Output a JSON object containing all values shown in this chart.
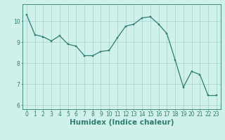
{
  "x": [
    0,
    1,
    2,
    3,
    4,
    5,
    6,
    7,
    8,
    9,
    10,
    11,
    12,
    13,
    14,
    15,
    16,
    17,
    18,
    19,
    20,
    21,
    22,
    23
  ],
  "y": [
    10.3,
    9.35,
    9.25,
    9.05,
    9.3,
    8.9,
    8.8,
    8.35,
    8.35,
    8.55,
    8.6,
    9.2,
    9.75,
    9.85,
    10.15,
    10.2,
    9.85,
    9.4,
    8.15,
    6.85,
    7.6,
    7.45,
    6.45,
    6.45
  ],
  "line_color": "#2e7d6e",
  "marker_color": "#2e7d6e",
  "bg_color": "#cff0eb",
  "grid_color": "#a0d4cc",
  "axis_color": "#2e7d6e",
  "xlabel": "Humidex (Indice chaleur)",
  "ylim": [
    5.8,
    10.8
  ],
  "xlim": [
    -0.5,
    23.5
  ],
  "yticks": [
    6,
    7,
    8,
    9,
    10
  ],
  "xticks": [
    0,
    1,
    2,
    3,
    4,
    5,
    6,
    7,
    8,
    9,
    10,
    11,
    12,
    13,
    14,
    15,
    16,
    17,
    18,
    19,
    20,
    21,
    22,
    23
  ],
  "tick_fontsize": 5.5,
  "xlabel_fontsize": 7.5
}
